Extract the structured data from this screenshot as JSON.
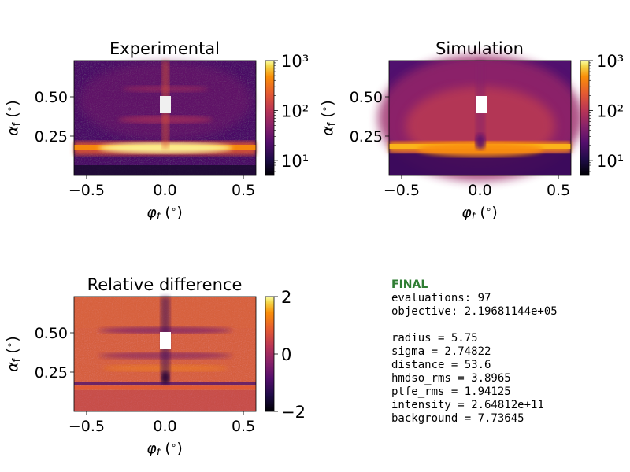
{
  "chart_data": [
    {
      "type": "heatmap",
      "title": "Experimental",
      "xlabel": "φf (°)",
      "ylabel": "αf (°)",
      "xlim": [
        -0.58,
        0.58
      ],
      "ylim": [
        0.0,
        0.73
      ],
      "x_ticks": [
        "−0.5",
        "0.0",
        "0.5"
      ],
      "x_tick_values": [
        -0.5,
        0.0,
        0.5
      ],
      "y_ticks": [
        "0.25",
        "0.50"
      ],
      "y_tick_values": [
        0.25,
        0.5
      ],
      "color_scale": "log",
      "colorbar_range": [
        5,
        1000
      ],
      "colorbar_ticks": [
        "10¹",
        "10²",
        "10³"
      ],
      "colorbar_tick_values": [
        10,
        100,
        1000
      ],
      "colormap": "inferno"
    },
    {
      "type": "heatmap",
      "title": "Simulation",
      "xlabel": "φf (°)",
      "ylabel": "αf (°)",
      "xlim": [
        -0.58,
        0.58
      ],
      "ylim": [
        0.0,
        0.73
      ],
      "x_ticks": [
        "−0.5",
        "0.0",
        "0.5"
      ],
      "x_tick_values": [
        -0.5,
        0.0,
        0.5
      ],
      "y_ticks": [
        "0.25",
        "0.50"
      ],
      "y_tick_values": [
        0.25,
        0.5
      ],
      "color_scale": "log",
      "colorbar_range": [
        5,
        1000
      ],
      "colorbar_ticks": [
        "10¹",
        "10²",
        "10³"
      ],
      "colorbar_tick_values": [
        10,
        100,
        1000
      ],
      "colormap": "inferno"
    },
    {
      "type": "heatmap",
      "title": "Relative difference",
      "xlabel": "φf (°)",
      "ylabel": "αf (°)",
      "xlim": [
        -0.58,
        0.58
      ],
      "ylim": [
        0.0,
        0.73
      ],
      "x_ticks": [
        "−0.5",
        "0.0",
        "0.5"
      ],
      "x_tick_values": [
        -0.5,
        0.0,
        0.5
      ],
      "y_ticks": [
        "0.25",
        "0.50"
      ],
      "y_tick_values": [
        0.25,
        0.5
      ],
      "color_scale": "linear",
      "colorbar_range": [
        -2,
        2
      ],
      "colorbar_ticks": [
        "−2",
        "0",
        "2"
      ],
      "colorbar_tick_values": [
        -2,
        0,
        2
      ],
      "colormap": "inferno"
    }
  ],
  "info": {
    "status": "FINAL",
    "lines": [
      "evaluations: 97",
      "objective: 2.19681144e+05",
      "",
      "radius = 5.75",
      "sigma = 2.74822",
      "distance = 53.6",
      "hmdso_rms = 3.8965",
      "ptfe_rms = 1.94125",
      "intensity = 2.64812e+11",
      "background = 7.73645"
    ]
  }
}
